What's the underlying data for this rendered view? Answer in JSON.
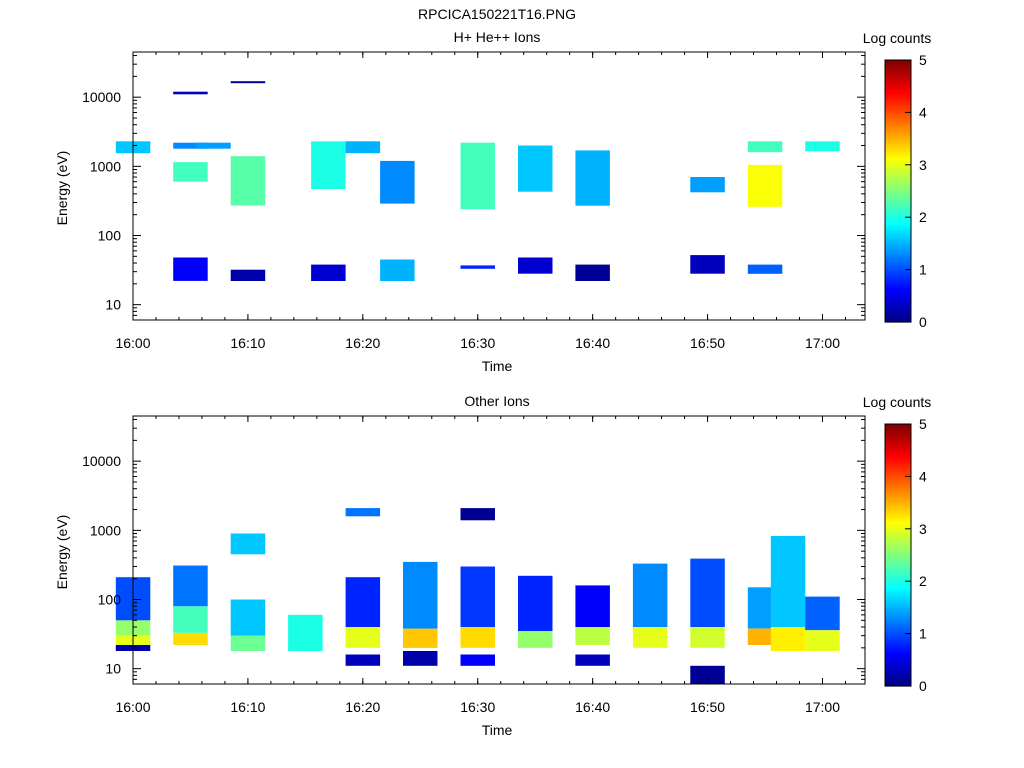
{
  "figure_title": "RPCICA150221T16.PNG",
  "chart_data": [
    {
      "type": "heatmap",
      "title": "H+ He++ Ions",
      "xlabel": "Time",
      "ylabel": "Energy (eV)",
      "y_scale": "log",
      "ylim": [
        6,
        45000
      ],
      "x_ticks": [
        "16:00",
        "16:10",
        "16:20",
        "16:30",
        "16:40",
        "16:50",
        "17:00"
      ],
      "y_ticks": [
        "10",
        "100",
        "1000",
        "10000"
      ],
      "colorbar": {
        "label": "Log counts",
        "range": [
          0,
          5
        ],
        "ticks": [
          "0",
          "1",
          "2",
          "3",
          "4",
          "5"
        ]
      },
      "time_bins": [
        "16:00",
        "16:05",
        "16:10",
        "16:15",
        "16:20",
        "16:25",
        "16:30",
        "16:35",
        "16:40",
        "16:45",
        "16:50",
        "16:55",
        "17:00"
      ],
      "cells": [
        {
          "t": "16:00",
          "e_low": 1550,
          "e_high": 2300,
          "v": 1.6
        },
        {
          "t": "16:05",
          "e_low": 600,
          "e_high": 1150,
          "v": 2.2
        },
        {
          "t": "16:05",
          "e_low": 1800,
          "e_high": 2200,
          "v": 1.3
        },
        {
          "t": "16:05",
          "e_low": 11000,
          "e_high": 12000,
          "v": 0.3
        },
        {
          "t": "16:05",
          "e_low": 22,
          "e_high": 48,
          "v": 0.6
        },
        {
          "t": "16:07",
          "e_low": 1800,
          "e_high": 2200,
          "v": 1.4
        },
        {
          "t": "16:10",
          "e_low": 270,
          "e_high": 1400,
          "v": 2.3
        },
        {
          "t": "16:10",
          "e_low": 22,
          "e_high": 32,
          "v": 0.2
        },
        {
          "t": "16:10",
          "e_low": 16000,
          "e_high": 17000,
          "v": 0.1
        },
        {
          "t": "16:17",
          "e_low": 470,
          "e_high": 2300,
          "v": 2.0
        },
        {
          "t": "16:17",
          "e_low": 22,
          "e_high": 38,
          "v": 0.4
        },
        {
          "t": "16:20",
          "e_low": 1550,
          "e_high": 2300,
          "v": 1.5
        },
        {
          "t": "16:23",
          "e_low": 290,
          "e_high": 1200,
          "v": 1.3
        },
        {
          "t": "16:23",
          "e_low": 22,
          "e_high": 45,
          "v": 1.5
        },
        {
          "t": "16:30",
          "e_low": 240,
          "e_high": 2200,
          "v": 2.2
        },
        {
          "t": "16:30",
          "e_low": 33,
          "e_high": 37,
          "v": 0.8
        },
        {
          "t": "16:35",
          "e_low": 430,
          "e_high": 2000,
          "v": 1.6
        },
        {
          "t": "16:35",
          "e_low": 28,
          "e_high": 48,
          "v": 0.4
        },
        {
          "t": "16:40",
          "e_low": 270,
          "e_high": 1700,
          "v": 1.5
        },
        {
          "t": "16:40",
          "e_low": 22,
          "e_high": 38,
          "v": 0.1
        },
        {
          "t": "16:50",
          "e_low": 420,
          "e_high": 700,
          "v": 1.4
        },
        {
          "t": "16:50",
          "e_low": 28,
          "e_high": 52,
          "v": 0.3
        },
        {
          "t": "16:55",
          "e_low": 1600,
          "e_high": 2300,
          "v": 2.2
        },
        {
          "t": "16:55",
          "e_low": 260,
          "e_high": 1050,
          "v": 3.1
        },
        {
          "t": "16:55",
          "e_low": 28,
          "e_high": 38,
          "v": 1.1
        },
        {
          "t": "17:00",
          "e_low": 1650,
          "e_high": 2300,
          "v": 2.0
        }
      ]
    },
    {
      "type": "heatmap",
      "title": "Other Ions",
      "xlabel": "Time",
      "ylabel": "Energy (eV)",
      "y_scale": "log",
      "ylim": [
        6,
        45000
      ],
      "x_ticks": [
        "16:00",
        "16:10",
        "16:20",
        "16:30",
        "16:40",
        "16:50",
        "17:00"
      ],
      "y_ticks": [
        "10",
        "100",
        "1000",
        "10000"
      ],
      "colorbar": {
        "label": "Log counts",
        "range": [
          0,
          5
        ],
        "ticks": [
          "0",
          "1",
          "2",
          "3",
          "4",
          "5"
        ]
      },
      "time_bins": [
        "16:00",
        "16:05",
        "16:10",
        "16:15",
        "16:20",
        "16:25",
        "16:30",
        "16:35",
        "16:40",
        "16:45",
        "16:50",
        "16:55",
        "17:00"
      ],
      "cells": [
        {
          "t": "16:00",
          "e_low": 18,
          "e_high": 22,
          "v": 0.2
        },
        {
          "t": "16:00",
          "e_low": 22,
          "e_high": 30,
          "v": 3.0
        },
        {
          "t": "16:00",
          "e_low": 30,
          "e_high": 50,
          "v": 2.6
        },
        {
          "t": "16:00",
          "e_low": 50,
          "e_high": 210,
          "v": 1.0
        },
        {
          "t": "16:05",
          "e_low": 22,
          "e_high": 33,
          "v": 3.3
        },
        {
          "t": "16:05",
          "e_low": 33,
          "e_high": 80,
          "v": 2.2
        },
        {
          "t": "16:05",
          "e_low": 80,
          "e_high": 310,
          "v": 1.2
        },
        {
          "t": "16:10",
          "e_low": 18,
          "e_high": 30,
          "v": 2.4
        },
        {
          "t": "16:10",
          "e_low": 30,
          "e_high": 100,
          "v": 1.6
        },
        {
          "t": "16:10",
          "e_low": 450,
          "e_high": 900,
          "v": 1.6
        },
        {
          "t": "16:15",
          "e_low": 18,
          "e_high": 60,
          "v": 2.0
        },
        {
          "t": "16:20",
          "e_low": 11,
          "e_high": 16,
          "v": 0.3
        },
        {
          "t": "16:20",
          "e_low": 20,
          "e_high": 40,
          "v": 3.0
        },
        {
          "t": "16:20",
          "e_low": 40,
          "e_high": 210,
          "v": 0.8
        },
        {
          "t": "16:20",
          "e_low": 1600,
          "e_high": 2100,
          "v": 1.2
        },
        {
          "t": "16:25",
          "e_low": 11,
          "e_high": 18,
          "v": 0.2
        },
        {
          "t": "16:25",
          "e_low": 20,
          "e_high": 38,
          "v": 3.4
        },
        {
          "t": "16:25",
          "e_low": 38,
          "e_high": 350,
          "v": 1.3
        },
        {
          "t": "16:30",
          "e_low": 11,
          "e_high": 16,
          "v": 0.6
        },
        {
          "t": "16:30",
          "e_low": 20,
          "e_high": 40,
          "v": 3.3
        },
        {
          "t": "16:30",
          "e_low": 40,
          "e_high": 300,
          "v": 0.9
        },
        {
          "t": "16:30",
          "e_low": 1400,
          "e_high": 2100,
          "v": 0.1
        },
        {
          "t": "16:35",
          "e_low": 20,
          "e_high": 35,
          "v": 2.6
        },
        {
          "t": "16:35",
          "e_low": 35,
          "e_high": 220,
          "v": 0.8
        },
        {
          "t": "16:40",
          "e_low": 11,
          "e_high": 16,
          "v": 0.3
        },
        {
          "t": "16:40",
          "e_low": 22,
          "e_high": 40,
          "v": 2.8
        },
        {
          "t": "16:40",
          "e_low": 40,
          "e_high": 160,
          "v": 0.6
        },
        {
          "t": "16:45",
          "e_low": 20,
          "e_high": 40,
          "v": 3.0
        },
        {
          "t": "16:45",
          "e_low": 40,
          "e_high": 330,
          "v": 1.3
        },
        {
          "t": "16:50",
          "e_low": 6,
          "e_high": 11,
          "v": 0.1
        },
        {
          "t": "16:50",
          "e_low": 20,
          "e_high": 40,
          "v": 2.9
        },
        {
          "t": "16:50",
          "e_low": 40,
          "e_high": 390,
          "v": 1.0
        },
        {
          "t": "16:55",
          "e_low": 22,
          "e_high": 38,
          "v": 3.5
        },
        {
          "t": "16:55",
          "e_low": 38,
          "e_high": 150,
          "v": 1.4
        },
        {
          "t": "16:57",
          "e_low": 18,
          "e_high": 40,
          "v": 3.2
        },
        {
          "t": "16:57",
          "e_low": 40,
          "e_high": 830,
          "v": 1.6
        },
        {
          "t": "17:00",
          "e_low": 18,
          "e_high": 36,
          "v": 3.0
        },
        {
          "t": "17:00",
          "e_low": 36,
          "e_high": 110,
          "v": 1.1
        }
      ]
    }
  ]
}
